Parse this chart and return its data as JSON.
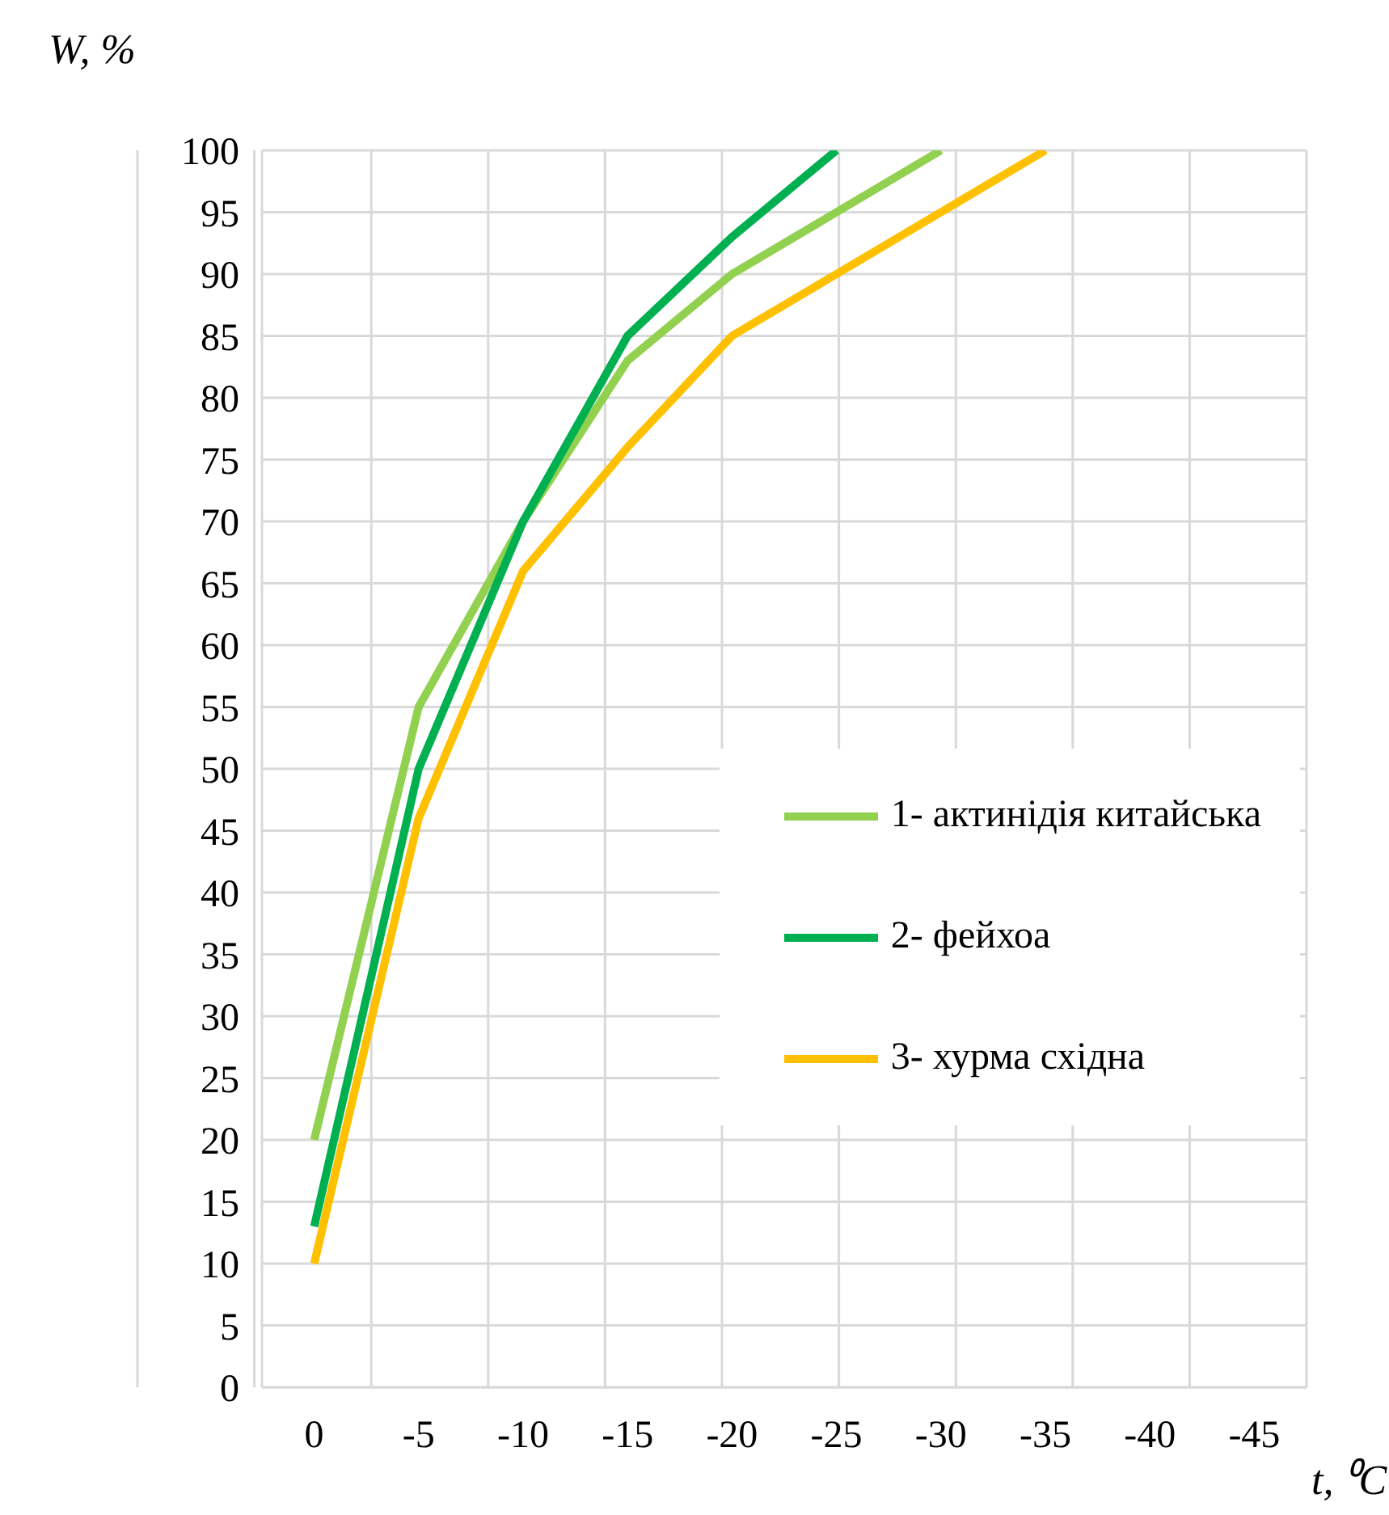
{
  "chart_data": {
    "type": "line",
    "xlabel": "t, ⁰C",
    "ylabel": "W, %",
    "categories": [
      "0",
      "-5",
      "-10",
      "-15",
      "-20",
      "-25",
      "-30",
      "-35",
      "-40",
      "-45"
    ],
    "series": [
      {
        "name": "1- актинідія китайська",
        "color": "#92d050",
        "values": [
          20,
          55,
          70,
          83,
          90,
          95,
          100,
          null,
          null,
          null
        ]
      },
      {
        "name": "2- фейхоа",
        "color": "#00b050",
        "values": [
          13,
          50,
          70,
          85,
          93,
          100,
          null,
          null,
          null,
          null
        ]
      },
      {
        "name": "3- хурма східна",
        "color": "#ffc000",
        "values": [
          10,
          46,
          66,
          76,
          85,
          90,
          95,
          100,
          null,
          null
        ]
      }
    ],
    "ylim": [
      0,
      100
    ],
    "yticks": [
      0,
      5,
      10,
      15,
      20,
      25,
      30,
      35,
      40,
      45,
      50,
      55,
      60,
      65,
      70,
      75,
      80,
      85,
      90,
      95,
      100
    ],
    "grid": true,
    "legend": "bottom right",
    "marker": "none",
    "line_style": "solid"
  }
}
